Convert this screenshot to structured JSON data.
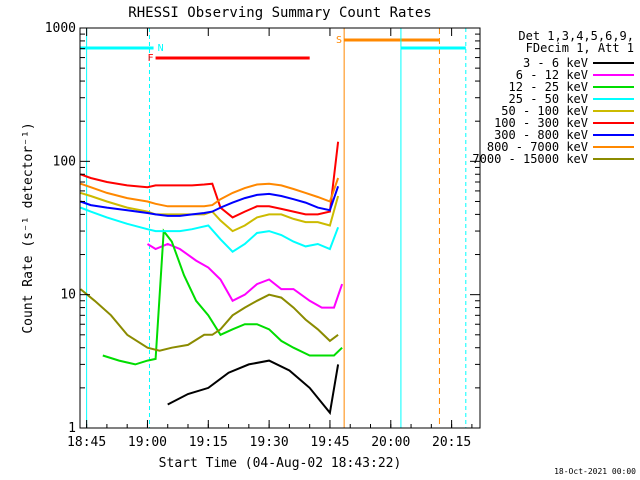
{
  "chart_data": {
    "type": "line",
    "title": "RHESSI Observing Summary Count Rates",
    "xlabel": "Start Time (04-Aug-02 18:43:22)",
    "ylabel": "Count Rate (s⁻¹ detector⁻¹)",
    "yscale": "log",
    "ylim": [
      1,
      1000
    ],
    "xlim": [
      "18:43:22",
      "20:22:00"
    ],
    "x_ticks": [
      "18:45",
      "19:00",
      "19:15",
      "19:30",
      "19:45",
      "20:00",
      "20:15"
    ],
    "y_ticks": [
      "1",
      "10",
      "100",
      "1000"
    ],
    "grid": false,
    "legend_position": "right",
    "legend_header": [
      "Det 1,3,4,5,6,9,",
      "FDecim 1, Att 1"
    ],
    "footer_date": "18-Oct-2021 00:00",
    "series": [
      {
        "name": "3 - 6 keV",
        "color": "#000000",
        "x": [
          "19:05",
          "19:10",
          "19:15",
          "19:20",
          "19:25",
          "19:30",
          "19:35",
          "19:40",
          "19:45",
          "19:47"
        ],
        "values": [
          1.5,
          1.8,
          2.0,
          2.6,
          3.0,
          3.2,
          2.7,
          2.0,
          1.3,
          3.0
        ]
      },
      {
        "name": "6 - 12 keV",
        "color": "#ff00ff",
        "x": [
          "19:00",
          "19:02",
          "19:05",
          "19:08",
          "19:12",
          "19:15",
          "19:18",
          "19:21",
          "19:24",
          "19:27",
          "19:30",
          "19:33",
          "19:36",
          "19:40",
          "19:43",
          "19:46",
          "19:48"
        ],
        "values": [
          24,
          22,
          24,
          22,
          18,
          16,
          13,
          9,
          10,
          12,
          13,
          11,
          11,
          9,
          8,
          8,
          12
        ]
      },
      {
        "name": "12 - 25 keV",
        "color": "#00dd00",
        "x": [
          "18:49",
          "18:53",
          "18:57",
          "19:00",
          "19:02",
          "19:04",
          "19:06",
          "19:09",
          "19:12",
          "19:15",
          "19:18",
          "19:21",
          "19:24",
          "19:27",
          "19:30",
          "19:33",
          "19:36",
          "19:40",
          "19:43",
          "19:46",
          "19:48"
        ],
        "values": [
          3.5,
          3.2,
          3.0,
          3.2,
          3.3,
          30,
          25,
          14,
          9,
          7,
          5,
          5.5,
          6,
          6,
          5.5,
          4.5,
          4,
          3.5,
          3.5,
          3.5,
          4
        ]
      },
      {
        "name": "25 - 50 keV",
        "color": "#00ffff",
        "x": [
          "18:43:30",
          "18:46",
          "18:50",
          "18:55",
          "19:00",
          "19:02",
          "19:05",
          "19:08",
          "19:11",
          "19:13",
          "19:15",
          "19:18",
          "19:21",
          "19:24",
          "19:27",
          "19:30",
          "19:33",
          "19:36",
          "19:39",
          "19:42",
          "19:45",
          "19:47"
        ],
        "values": [
          45,
          42,
          38,
          34,
          31,
          30,
          30,
          30,
          31,
          32,
          33,
          26,
          21,
          24,
          29,
          30,
          28,
          25,
          23,
          24,
          22,
          32
        ]
      },
      {
        "name": "50 - 100 keV",
        "color": "#ccbb00",
        "x": [
          "18:43:30",
          "18:46",
          "18:50",
          "18:55",
          "19:00",
          "19:02",
          "19:05",
          "19:08",
          "19:11",
          "19:14",
          "19:16",
          "19:18",
          "19:21",
          "19:24",
          "19:27",
          "19:30",
          "19:33",
          "19:36",
          "19:39",
          "19:42",
          "19:45",
          "19:47"
        ],
        "values": [
          58,
          55,
          50,
          45,
          42,
          40,
          40,
          40,
          40,
          40,
          42,
          36,
          30,
          33,
          38,
          40,
          40,
          37,
          35,
          35,
          33,
          55
        ]
      },
      {
        "name": "100 - 300 keV",
        "color": "#ff0000",
        "x": [
          "18:43:30",
          "18:46",
          "18:50",
          "18:55",
          "19:00",
          "19:02",
          "19:05",
          "19:08",
          "19:11",
          "19:14",
          "19:16",
          "19:18",
          "19:21",
          "19:24",
          "19:27",
          "19:30",
          "19:33",
          "19:36",
          "19:39",
          "19:42",
          "19:45",
          "19:47"
        ],
        "values": [
          80,
          75,
          70,
          66,
          64,
          66,
          66,
          66,
          66,
          67,
          68,
          45,
          38,
          42,
          46,
          46,
          44,
          42,
          40,
          40,
          42,
          140
        ]
      },
      {
        "name": "300 - 800 keV",
        "color": "#0000ff",
        "x": [
          "18:43:30",
          "18:46",
          "18:50",
          "18:55",
          "19:00",
          "19:02",
          "19:05",
          "19:08",
          "19:11",
          "19:14",
          "19:16",
          "19:18",
          "19:21",
          "19:24",
          "19:27",
          "19:30",
          "19:33",
          "19:36",
          "19:39",
          "19:42",
          "19:45",
          "19:47"
        ],
        "values": [
          50,
          47,
          45,
          43,
          41,
          40,
          39,
          39,
          40,
          41,
          42,
          45,
          49,
          53,
          56,
          57,
          55,
          52,
          49,
          45,
          43,
          65
        ]
      },
      {
        "name": "800 - 7000 keV",
        "color": "#ff8800",
        "x": [
          "18:43:30",
          "18:46",
          "18:50",
          "18:55",
          "19:00",
          "19:02",
          "19:05",
          "19:08",
          "19:11",
          "19:14",
          "19:16",
          "19:18",
          "19:21",
          "19:24",
          "19:27",
          "19:30",
          "19:33",
          "19:36",
          "19:39",
          "19:42",
          "19:45",
          "19:47"
        ],
        "values": [
          68,
          64,
          58,
          53,
          50,
          48,
          46,
          46,
          46,
          46,
          47,
          52,
          58,
          63,
          67,
          68,
          66,
          62,
          58,
          54,
          50,
          75
        ]
      },
      {
        "name": "7000 - 15000 keV",
        "color": "#8b8b00",
        "x": [
          "18:43:30",
          "18:47",
          "18:51",
          "18:55",
          "19:00",
          "19:03",
          "19:06",
          "19:10",
          "19:14",
          "19:16",
          "19:18",
          "19:21",
          "19:24",
          "19:27",
          "19:30",
          "19:33",
          "19:36",
          "19:39",
          "19:42",
          "19:45",
          "19:47"
        ],
        "values": [
          11,
          9,
          7,
          5,
          4,
          3.8,
          4,
          4.2,
          5,
          5,
          5.5,
          7,
          8,
          9,
          10,
          9.5,
          8,
          6.5,
          5.5,
          4.5,
          5
        ]
      }
    ],
    "flag_labels": [
      "N",
      "F",
      "S"
    ],
    "colors": {
      "night": "#00ffff",
      "flare": "#ff0000",
      "saa": "#ff8800",
      "axes": "#000000"
    }
  }
}
